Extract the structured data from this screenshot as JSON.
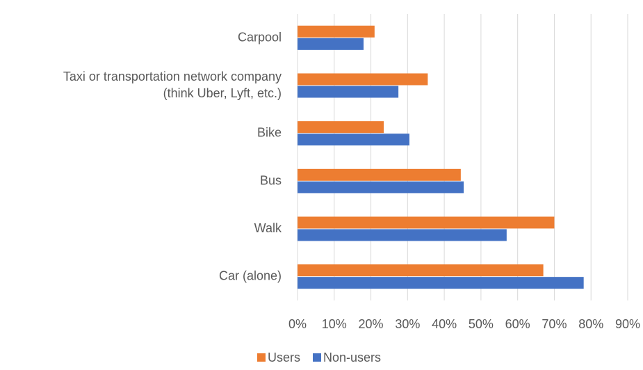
{
  "chart_data": {
    "type": "hbar",
    "categories": [
      "Carpool",
      "Taxi or transportation network company\n(think Uber, Lyft, etc.)",
      "Bike",
      "Bus",
      "Walk",
      "Car (alone)"
    ],
    "series": [
      {
        "name": "Users",
        "color": "#ed7d31",
        "values": [
          21,
          35.5,
          23.5,
          44.5,
          70,
          67
        ]
      },
      {
        "name": "Non-users",
        "color": "#4472c4",
        "values": [
          18,
          27.5,
          30.5,
          45.3,
          57,
          78
        ]
      }
    ],
    "xlim": [
      0,
      90
    ],
    "xticks": [
      {
        "value": 0,
        "label": "0%"
      },
      {
        "value": 10,
        "label": "10%"
      },
      {
        "value": 20,
        "label": "20%"
      },
      {
        "value": 30,
        "label": "30%"
      },
      {
        "value": 40,
        "label": "40%"
      },
      {
        "value": 50,
        "label": "50%"
      },
      {
        "value": 60,
        "label": "60%"
      },
      {
        "value": 70,
        "label": "70%"
      },
      {
        "value": 80,
        "label": "80%"
      },
      {
        "value": 90,
        "label": "90%"
      }
    ],
    "grid": true
  }
}
